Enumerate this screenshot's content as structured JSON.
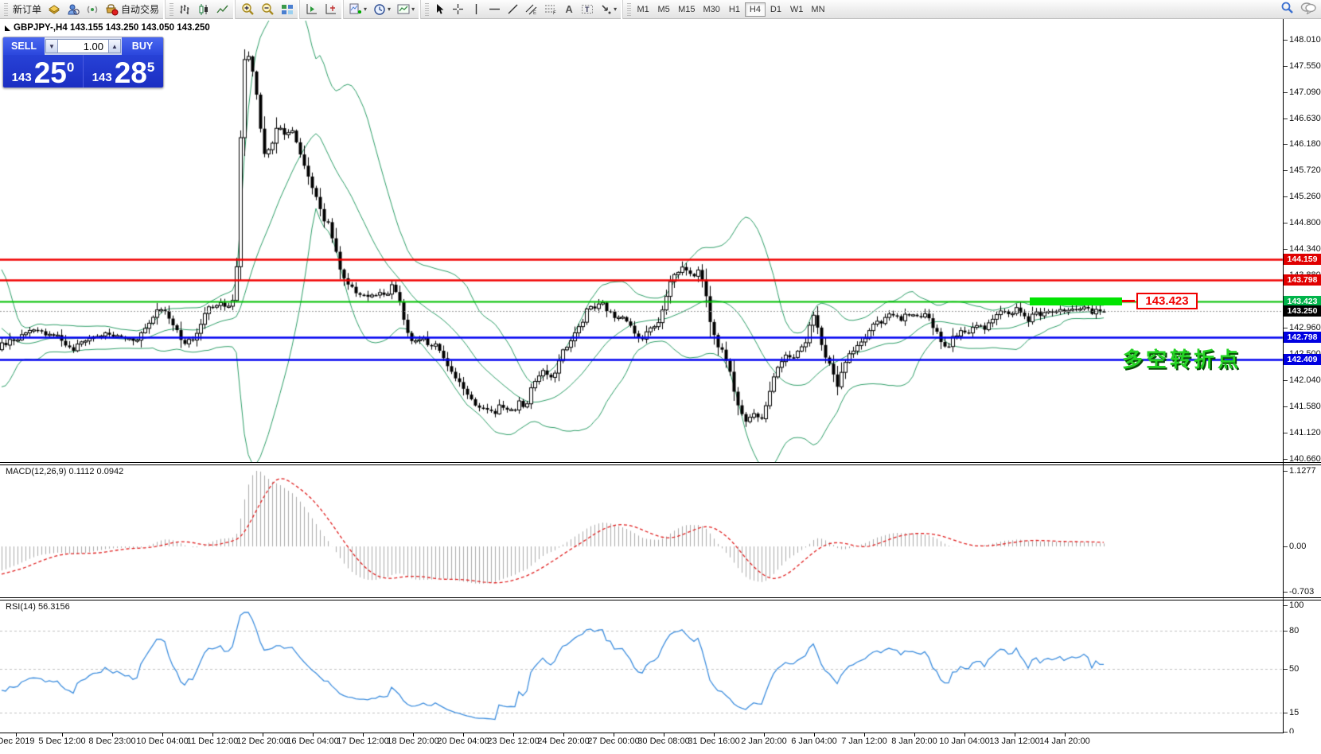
{
  "toolbar": {
    "new_order_label": "新订单",
    "autotrading_label": "自动交易",
    "timeframes": {
      "items": [
        "M1",
        "M5",
        "M15",
        "M30",
        "H1",
        "H4",
        "D1",
        "W1",
        "MN"
      ],
      "active": "H4"
    }
  },
  "chart": {
    "symbol_line": "GBPJPY-,H4  143.155 143.250 143.050 143.250",
    "one_click": {
      "sell_label": "SELL",
      "buy_label": "BUY",
      "volume": "1.00",
      "sell_price": {
        "prefix": "143",
        "big": "25",
        "sup": "0"
      },
      "buy_price": {
        "prefix": "143",
        "big": "28",
        "sup": "5"
      }
    },
    "annotation": {
      "box_label": "143.423",
      "text": "多空转折点"
    }
  },
  "macd": {
    "label": "MACD(12,26,9) 0.1112 0.0942"
  },
  "rsi": {
    "label": "RSI(14) 56.3156"
  },
  "chart_data": {
    "type": "candlestick",
    "symbol": "GBPJPY-",
    "timeframe": "H4",
    "ohlc_line": {
      "open": 143.155,
      "high": 143.25,
      "low": 143.05,
      "close": 143.25
    },
    "bid": "143.250",
    "ask": "143.285",
    "current_price": 143.25,
    "price_axis_ticks": [
      "148.010",
      "147.550",
      "147.090",
      "146.630",
      "146.180",
      "145.720",
      "145.260",
      "144.800",
      "144.340",
      "143.880",
      "143.420",
      "142.960",
      "142.500",
      "142.040",
      "141.580",
      "141.120",
      "140.660"
    ],
    "levels": [
      {
        "price": 144.159,
        "label": "144.159",
        "color": "#f00000",
        "width": 2.5,
        "style": "solid",
        "tag_bg": "#e00000",
        "tag_fg": "#ffffff"
      },
      {
        "price": 143.798,
        "label": "143.798",
        "color": "#f00000",
        "width": 2.5,
        "style": "solid",
        "tag_bg": "#e00000",
        "tag_fg": "#ffffff"
      },
      {
        "price": 143.423,
        "label": "143.423",
        "color": "#00c000",
        "width": 2,
        "style": "solid",
        "tag_bg": "#00b44a",
        "tag_fg": "#ffffff"
      },
      {
        "price": 143.25,
        "label": "143.250",
        "color": "#9a9a9a",
        "width": 1,
        "style": "dot",
        "tag_bg": "#000000",
        "tag_fg": "#ffffff"
      },
      {
        "price": 142.798,
        "label": "142.798",
        "color": "#0000f0",
        "width": 2.5,
        "style": "solid",
        "tag_bg": "#0000e0",
        "tag_fg": "#ffffff"
      },
      {
        "price": 142.409,
        "label": "142.409",
        "color": "#0000f0",
        "width": 2.5,
        "style": "solid",
        "tag_bg": "#0000e0",
        "tag_fg": "#ffffff"
      }
    ],
    "time_labels": [
      "Dec 2019",
      "5 Dec 12:00",
      "8 Dec 23:00",
      "10 Dec 04:00",
      "11 Dec 12:00",
      "12 Dec 20:00",
      "16 Dec 04:00",
      "17 Dec 12:00",
      "18 Dec 20:00",
      "20 Dec 04:00",
      "23 Dec 12:00",
      "24 Dec 20:00",
      "27 Dec 00:00",
      "30 Dec 08:00",
      "31 Dec 16:00",
      "2 Jan 20:00",
      "6 Jan 04:00",
      "7 Jan 12:00",
      "8 Jan 20:00",
      "10 Jan 04:00",
      "13 Jan 12:00",
      "14 Jan 20:00"
    ],
    "indicators": {
      "bollinger": {
        "period": 20,
        "deviation": 2,
        "color": "#2e9e68"
      },
      "macd": {
        "fast": 12,
        "slow": 26,
        "signal": 9,
        "value": 0.1112,
        "signal_value": 0.0942,
        "axis_ticks": [
          "1.1277",
          "0.00",
          "-0.703"
        ],
        "axis_values": [
          1.1277,
          0,
          -0.703
        ]
      },
      "rsi": {
        "period": 14,
        "value": 56.3156,
        "axis_ticks": [
          "100",
          "80",
          "50",
          "15",
          "0"
        ],
        "axis_values": [
          100,
          80,
          50,
          15,
          0
        ],
        "dashed_levels": [
          80,
          50,
          15
        ],
        "color": "#3e8ede"
      }
    },
    "price_keypoints": [
      [
        -125,
        144.5
      ],
      [
        -105,
        143.4
      ],
      [
        -85,
        144.1
      ],
      [
        -65,
        142.9
      ],
      [
        -45,
        142.4
      ],
      [
        -25,
        142.9
      ],
      [
        -10,
        142.5
      ],
      [
        0,
        142.65
      ],
      [
        15,
        142.75
      ],
      [
        40,
        142.9
      ],
      [
        70,
        142.85
      ],
      [
        90,
        142.55
      ],
      [
        105,
        142.75
      ],
      [
        130,
        142.85
      ],
      [
        150,
        142.8
      ],
      [
        170,
        142.75
      ],
      [
        185,
        143.0
      ],
      [
        200,
        143.35
      ],
      [
        215,
        143.1
      ],
      [
        230,
        142.65
      ],
      [
        245,
        142.8
      ],
      [
        260,
        143.3
      ],
      [
        275,
        143.4
      ],
      [
        290,
        143.35
      ],
      [
        296,
        143.55
      ],
      [
        302,
        146.3
      ],
      [
        308,
        147.95
      ],
      [
        314,
        147.6
      ],
      [
        320,
        147.35
      ],
      [
        326,
        146.5
      ],
      [
        333,
        145.95
      ],
      [
        341,
        146.2
      ],
      [
        349,
        146.5
      ],
      [
        357,
        146.35
      ],
      [
        365,
        146.45
      ],
      [
        373,
        146.2
      ],
      [
        381,
        145.85
      ],
      [
        389,
        145.5
      ],
      [
        397,
        145.3
      ],
      [
        405,
        144.9
      ],
      [
        413,
        144.75
      ],
      [
        421,
        144.35
      ],
      [
        429,
        143.85
      ],
      [
        437,
        143.7
      ],
      [
        445,
        143.6
      ],
      [
        455,
        143.55
      ],
      [
        465,
        143.5
      ],
      [
        475,
        143.55
      ],
      [
        485,
        143.5
      ],
      [
        492,
        143.68
      ],
      [
        500,
        143.55
      ],
      [
        508,
        143.0
      ],
      [
        516,
        142.75
      ],
      [
        524,
        142.7
      ],
      [
        532,
        142.75
      ],
      [
        540,
        142.65
      ],
      [
        548,
        142.7
      ],
      [
        556,
        142.5
      ],
      [
        564,
        142.2
      ],
      [
        572,
        142.1
      ],
      [
        580,
        141.95
      ],
      [
        588,
        141.8
      ],
      [
        596,
        141.6
      ],
      [
        604,
        141.5
      ],
      [
        612,
        141.55
      ],
      [
        620,
        141.45
      ],
      [
        628,
        141.6
      ],
      [
        636,
        141.55
      ],
      [
        644,
        141.5
      ],
      [
        652,
        141.65
      ],
      [
        660,
        141.55
      ],
      [
        668,
        141.95
      ],
      [
        676,
        142.1
      ],
      [
        684,
        142.2
      ],
      [
        692,
        142.05
      ],
      [
        700,
        142.3
      ],
      [
        708,
        142.6
      ],
      [
        716,
        142.7
      ],
      [
        724,
        142.9
      ],
      [
        732,
        143.1
      ],
      [
        740,
        143.35
      ],
      [
        748,
        143.3
      ],
      [
        756,
        143.4
      ],
      [
        764,
        143.25
      ],
      [
        772,
        143.15
      ],
      [
        780,
        143.2
      ],
      [
        788,
        143.1
      ],
      [
        796,
        142.85
      ],
      [
        804,
        142.75
      ],
      [
        812,
        142.9
      ],
      [
        820,
        142.95
      ],
      [
        828,
        143.1
      ],
      [
        836,
        143.5
      ],
      [
        844,
        143.85
      ],
      [
        852,
        143.95
      ],
      [
        860,
        144.05
      ],
      [
        868,
        143.85
      ],
      [
        876,
        143.95
      ],
      [
        884,
        143.8
      ],
      [
        892,
        143.1
      ],
      [
        900,
        142.65
      ],
      [
        908,
        142.55
      ],
      [
        916,
        142.3
      ],
      [
        924,
        141.75
      ],
      [
        932,
        141.45
      ],
      [
        940,
        141.3
      ],
      [
        948,
        141.5
      ],
      [
        956,
        141.35
      ],
      [
        964,
        141.7
      ],
      [
        972,
        142.1
      ],
      [
        980,
        142.3
      ],
      [
        988,
        142.5
      ],
      [
        996,
        142.45
      ],
      [
        1004,
        142.55
      ],
      [
        1012,
        142.7
      ],
      [
        1020,
        143.25
      ],
      [
        1028,
        142.9
      ],
      [
        1036,
        142.5
      ],
      [
        1044,
        142.3
      ],
      [
        1052,
        141.95
      ],
      [
        1060,
        142.3
      ],
      [
        1068,
        142.5
      ],
      [
        1076,
        142.6
      ],
      [
        1084,
        142.75
      ],
      [
        1092,
        142.9
      ],
      [
        1100,
        143.1
      ],
      [
        1108,
        143.0
      ],
      [
        1116,
        143.2
      ],
      [
        1124,
        143.15
      ],
      [
        1132,
        143.1
      ],
      [
        1140,
        143.2
      ],
      [
        1148,
        143.15
      ],
      [
        1156,
        143.1
      ],
      [
        1164,
        143.2
      ],
      [
        1172,
        143.0
      ],
      [
        1180,
        142.8
      ],
      [
        1188,
        142.6
      ],
      [
        1196,
        142.75
      ],
      [
        1204,
        142.9
      ],
      [
        1212,
        142.85
      ],
      [
        1220,
        142.95
      ],
      [
        1228,
        143.05
      ],
      [
        1236,
        142.95
      ],
      [
        1244,
        143.1
      ],
      [
        1252,
        143.2
      ],
      [
        1260,
        143.25
      ],
      [
        1268,
        143.15
      ],
      [
        1276,
        143.3
      ],
      [
        1284,
        143.2
      ],
      [
        1292,
        143.1
      ],
      [
        1300,
        143.25
      ],
      [
        1308,
        143.2
      ],
      [
        1316,
        143.3
      ],
      [
        1324,
        143.25
      ],
      [
        1332,
        143.3
      ],
      [
        1340,
        143.2
      ],
      [
        1348,
        143.3
      ],
      [
        1356,
        143.25
      ],
      [
        1364,
        143.3
      ],
      [
        1372,
        143.2
      ],
      [
        1380,
        143.3
      ],
      [
        1388,
        143.25
      ]
    ]
  }
}
